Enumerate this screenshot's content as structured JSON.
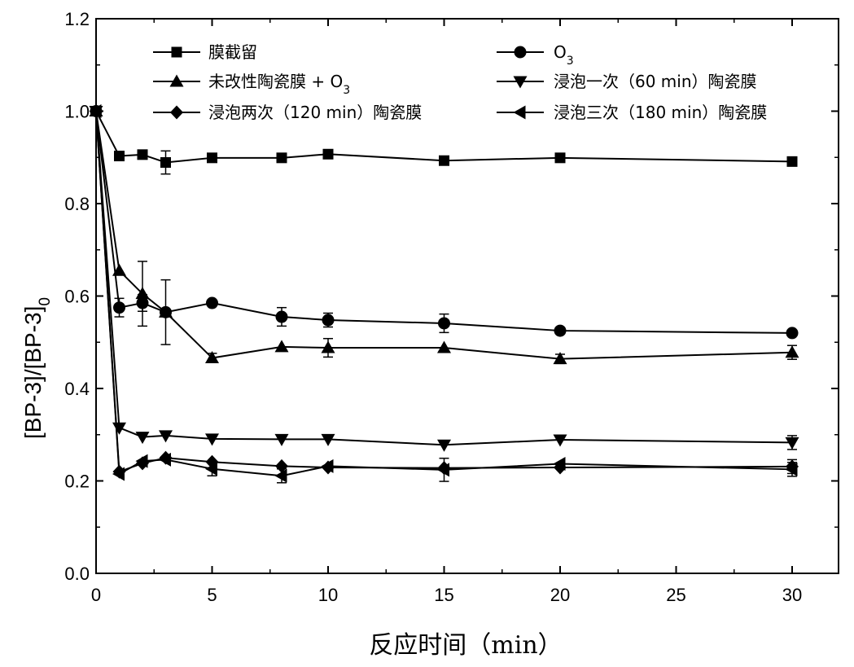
{
  "chart_data": {
    "type": "line",
    "xlabel": "反应时间（min）",
    "ylabel": "[BP-3]/[BP-3]",
    "ylabel_subscript": "0",
    "xlim": [
      0,
      32
    ],
    "ylim": [
      0,
      1.2
    ],
    "xticks": [
      0,
      5,
      10,
      15,
      20,
      25,
      30
    ],
    "yticks": [
      "0.0",
      "0.2",
      "0.4",
      "0.6",
      "0.8",
      "1.0",
      "1.2"
    ],
    "grid": false,
    "legend_position": "top",
    "series": [
      {
        "name": "膜截留",
        "marker": "square",
        "x": [
          0,
          1,
          2,
          3,
          5,
          8,
          10,
          15,
          20,
          30
        ],
        "y": [
          1.0,
          0.903,
          0.906,
          0.889,
          0.899,
          0.899,
          0.907,
          0.893,
          0.899,
          0.891
        ],
        "err": [
          0,
          0,
          0,
          0.025,
          0,
          0,
          0,
          0,
          0,
          0
        ]
      },
      {
        "name": "O",
        "name_subscript": "3",
        "marker": "circle",
        "x": [
          0,
          1,
          2,
          3,
          5,
          8,
          10,
          15,
          20,
          30
        ],
        "y": [
          1.0,
          0.575,
          0.585,
          0.565,
          0.585,
          0.555,
          0.548,
          0.541,
          0.525,
          0.52
        ],
        "err": [
          0,
          0.02,
          0.018,
          0,
          0,
          0.02,
          0.015,
          0.02,
          0,
          0
        ]
      },
      {
        "name": "未改性陶瓷膜 + O",
        "name_subscript": "3",
        "marker": "triangle-up",
        "x": [
          0,
          1,
          2,
          3,
          5,
          8,
          10,
          15,
          20,
          30
        ],
        "y": [
          1.0,
          0.655,
          0.605,
          0.565,
          0.466,
          0.49,
          0.488,
          0.488,
          0.464,
          0.478
        ],
        "err": [
          0,
          0,
          0.07,
          0.07,
          0.01,
          0,
          0.02,
          0,
          0.01,
          0.015
        ]
      },
      {
        "name": "浸泡一次（60 min）陶瓷膜",
        "marker": "triangle-down",
        "x": [
          0,
          1,
          2,
          3,
          5,
          8,
          10,
          15,
          20,
          30
        ],
        "y": [
          1.0,
          0.315,
          0.295,
          0.298,
          0.291,
          0.29,
          0.29,
          0.278,
          0.289,
          0.283
        ],
        "err": [
          0,
          0,
          0,
          0,
          0,
          0,
          0,
          0,
          0,
          0.015
        ]
      },
      {
        "name": "浸泡两次（120 min）陶瓷膜",
        "marker": "diamond",
        "x": [
          0,
          1,
          2,
          3,
          5,
          8,
          10,
          15,
          20,
          30
        ],
        "y": [
          1.0,
          0.22,
          0.238,
          0.25,
          0.241,
          0.232,
          0.229,
          0.228,
          0.229,
          0.231
        ],
        "err": [
          0,
          0,
          0,
          0,
          0,
          0,
          0,
          0,
          0,
          0.015
        ]
      },
      {
        "name": "浸泡三次（180 min）陶瓷膜",
        "marker": "triangle-left",
        "x": [
          0,
          1,
          2,
          3,
          5,
          8,
          10,
          15,
          20,
          30
        ],
        "y": [
          1.0,
          0.215,
          0.243,
          0.246,
          0.226,
          0.211,
          0.232,
          0.224,
          0.237,
          0.225
        ],
        "err": [
          0,
          0,
          0,
          0,
          0.015,
          0.015,
          0,
          0.025,
          0,
          0.015
        ]
      }
    ]
  }
}
